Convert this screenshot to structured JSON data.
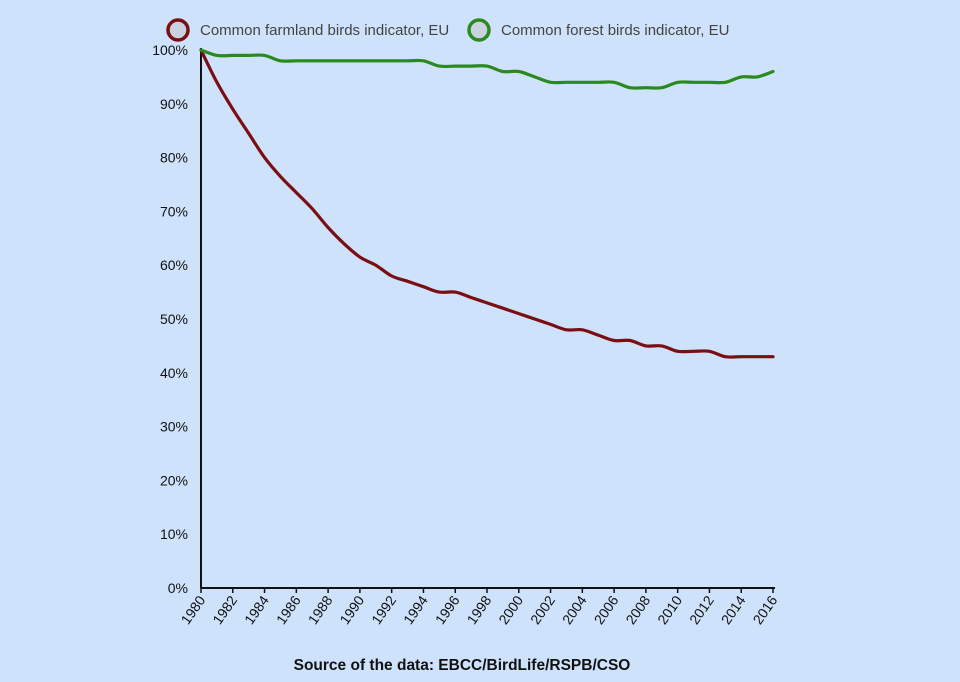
{
  "chart_data": {
    "type": "line",
    "title": "",
    "xlabel": "",
    "ylabel": "",
    "x": [
      1980,
      1981,
      1982,
      1983,
      1984,
      1985,
      1986,
      1987,
      1988,
      1989,
      1990,
      1991,
      1992,
      1993,
      1994,
      1995,
      1996,
      1997,
      1998,
      1999,
      2000,
      2001,
      2002,
      2003,
      2004,
      2005,
      2006,
      2007,
      2008,
      2009,
      2010,
      2011,
      2012,
      2013,
      2014,
      2015,
      2016
    ],
    "xlim": [
      1980,
      2016
    ],
    "ylim": [
      0,
      100
    ],
    "x_ticks": [
      "1980",
      "1982",
      "1984",
      "1986",
      "1988",
      "1990",
      "1992",
      "1994",
      "1996",
      "1998",
      "2000",
      "2002",
      "2004",
      "2006",
      "2008",
      "2010",
      "2012",
      "2014",
      "2016"
    ],
    "y_ticks": [
      "0%",
      "10%",
      "20%",
      "30%",
      "40%",
      "50%",
      "60%",
      "70%",
      "80%",
      "90%",
      "100%"
    ],
    "grid": false,
    "legend_position": "top",
    "series": [
      {
        "name": "Common farmland birds indicator, EU",
        "color": "#7a0e13",
        "values": [
          100,
          94,
          89,
          84.5,
          80,
          76.5,
          73.5,
          70.5,
          67,
          64,
          61.5,
          60,
          58,
          57,
          56,
          55,
          55,
          54,
          53,
          52,
          51,
          50,
          49,
          48,
          48,
          47,
          46,
          46,
          45,
          45,
          44,
          44,
          44,
          43,
          43,
          43,
          43
        ]
      },
      {
        "name": "Common forest birds indicator, EU",
        "color": "#2a8a1e",
        "values": [
          100,
          99,
          99,
          99,
          99,
          98,
          98,
          98,
          98,
          98,
          98,
          98,
          98,
          98,
          98,
          97,
          97,
          97,
          97,
          96,
          96,
          95,
          94,
          94,
          94,
          94,
          94,
          93,
          93,
          93,
          94,
          94,
          94,
          94,
          95,
          95,
          96
        ]
      }
    ]
  },
  "source": "Source of the data: EBCC/BirdLife/RSPB/CSO"
}
